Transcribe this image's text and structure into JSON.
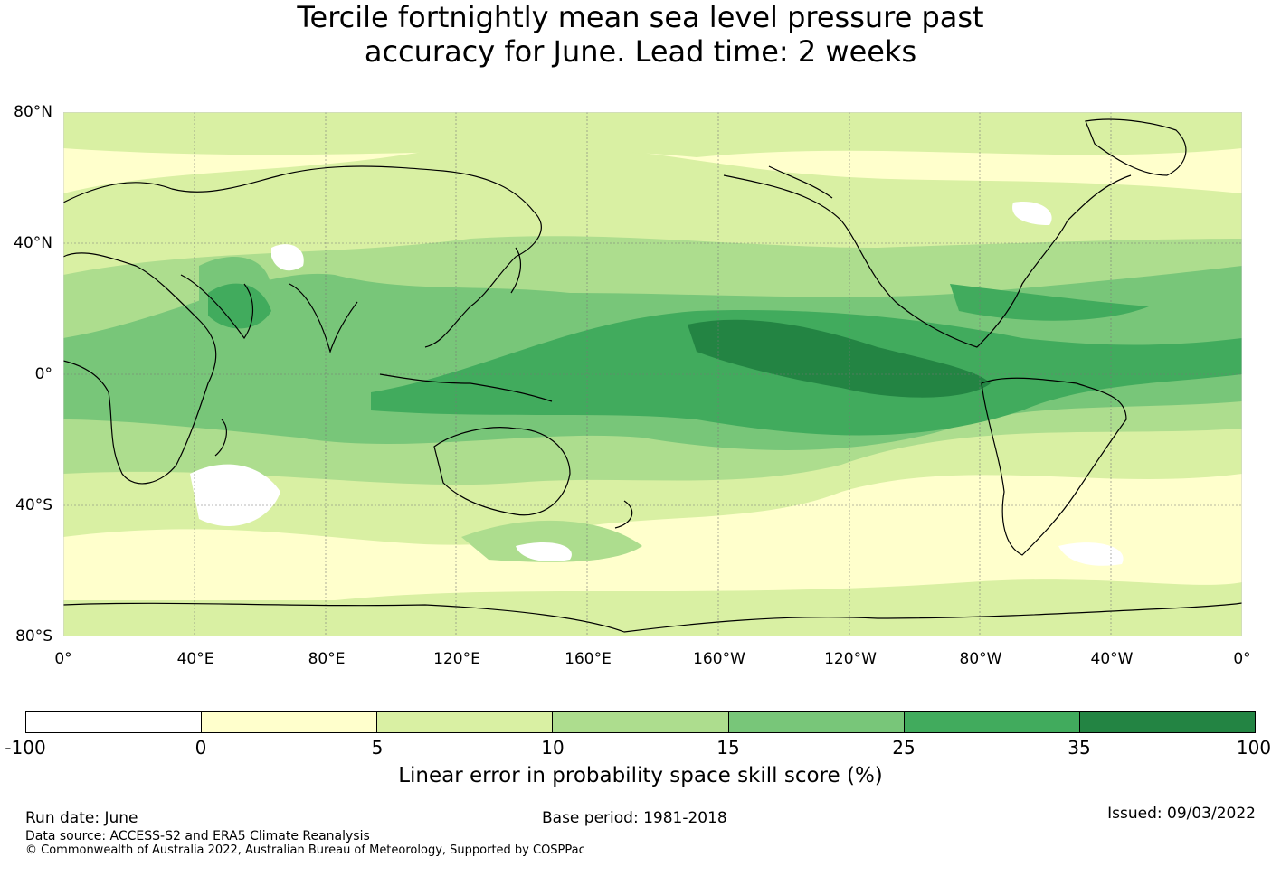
{
  "title": {
    "line1": "Tercile fortnightly mean sea level pressure past",
    "line2": "accuracy for June. Lead time: 2 weeks"
  },
  "map": {
    "lat_labels": [
      "80°N",
      "40°N",
      "0°",
      "40°S",
      "80°S"
    ],
    "lon_labels": [
      "0°",
      "40°E",
      "80°E",
      "120°E",
      "160°E",
      "160°W",
      "120°W",
      "80°W",
      "40°W",
      "0°"
    ],
    "colors": {
      "ocean_low": "#ffffcc",
      "c5": "#d9f0a3",
      "c10": "#addd8e",
      "c15": "#78c679",
      "c25": "#41ab5d",
      "c35": "#238443",
      "negative": "#ffffff",
      "coast": "#000000",
      "grid": "#777777"
    }
  },
  "colorbar": {
    "tick_labels": [
      "-100",
      "0",
      "5",
      "10",
      "15",
      "25",
      "35",
      "100"
    ],
    "colors": [
      "#ffffff",
      "#ffffcc",
      "#d9f0a3",
      "#addd8e",
      "#78c679",
      "#41ab5d",
      "#238443"
    ],
    "title": "Linear error in probability space skill score (%)"
  },
  "footer": {
    "run_date": "Run date: June",
    "base_period": "Base period: 1981-2018",
    "issued": "Issued: 09/03/2022",
    "data_source": "Data source: ACCESS-S2 and ERA5 Climate Reanalysis",
    "copyright": "© Commonwealth of Australia 2022, Australian Bureau of Meteorology, Supported by COSPPac"
  }
}
